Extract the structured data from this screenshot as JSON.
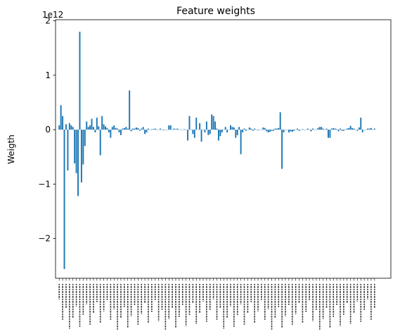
{
  "chart_data": {
    "type": "bar",
    "title": "Feature weights",
    "xlabel": "",
    "ylabel": "Weigth",
    "offset_label": "1e12",
    "y_ticks": [
      {
        "value": 2,
        "label": "2"
      },
      {
        "value": 1,
        "label": "1"
      },
      {
        "value": 0,
        "label": "0"
      },
      {
        "value": -1,
        "label": "−1"
      },
      {
        "value": -2,
        "label": "−2"
      }
    ],
    "ylim": [
      -2.73,
      2.02
    ],
    "bar_color": "#1f77b4",
    "grid": false,
    "legend": "none",
    "x_tick_labels_note": "dense illegible rotated category labels",
    "values": [
      0.08,
      0.45,
      0.25,
      -2.56,
      0.1,
      -0.75,
      0.12,
      0.08,
      0.05,
      -0.62,
      -0.8,
      -1.22,
      1.8,
      -0.97,
      -0.64,
      -0.3,
      0.15,
      0.05,
      0.08,
      0.2,
      0.05,
      -0.05,
      0.22,
      0.06,
      -0.47,
      0.25,
      0.1,
      0.06,
      0.03,
      -0.05,
      -0.15,
      0.05,
      0.08,
      0.03,
      0.02,
      -0.05,
      -0.1,
      0.02,
      0.03,
      0.05,
      0.02,
      0.72,
      -0.03,
      0.02,
      0.02,
      0.04,
      0.03,
      -0.02,
      0.02,
      0.05,
      -0.08,
      -0.05,
      0.02,
      0.0,
      0.01,
      0.01,
      0.02,
      0.0,
      0.0,
      0.02,
      0.0,
      -0.01,
      0.0,
      0.0,
      0.08,
      0.08,
      0.0,
      0.02,
      0.01,
      0.02,
      0.0,
      0.0,
      0.0,
      0.01,
      0.0,
      -0.2,
      0.25,
      0.0,
      -0.08,
      -0.15,
      0.22,
      0.0,
      0.12,
      -0.22,
      0.0,
      -0.05,
      0.15,
      -0.1,
      -0.08,
      0.28,
      0.25,
      0.15,
      0.02,
      -0.2,
      -0.12,
      -0.05,
      0.0,
      0.05,
      -0.05,
      0.0,
      0.08,
      0.05,
      0.04,
      -0.15,
      -0.1,
      0.05,
      -0.45,
      -0.05,
      0.02,
      -0.02,
      0.0,
      0.04,
      0.02,
      -0.02,
      0.02,
      0.0,
      -0.01,
      0.0,
      0.0,
      0.04,
      0.03,
      -0.03,
      -0.05,
      -0.04,
      -0.02,
      -0.02,
      0.02,
      0.02,
      0.03,
      0.32,
      -0.72,
      -0.05,
      0.0,
      0.0,
      -0.05,
      -0.03,
      -0.04,
      -0.02,
      0.0,
      0.02,
      -0.02,
      0.0,
      0.01,
      0.0,
      0.0,
      0.02,
      0.0,
      -0.03,
      0.02,
      0.0,
      0.0,
      0.03,
      0.05,
      0.05,
      0.02,
      0.0,
      0.02,
      -0.15,
      -0.15,
      0.02,
      0.03,
      0.02,
      0.01,
      -0.03,
      0.02,
      -0.02,
      -0.02,
      0.0,
      0.02,
      0.03,
      0.07,
      0.03,
      0.02,
      0.0,
      -0.02,
      0.04,
      0.22,
      -0.05,
      0.0,
      0.0,
      0.02,
      0.02,
      0.03,
      0.0,
      0.02
    ]
  }
}
